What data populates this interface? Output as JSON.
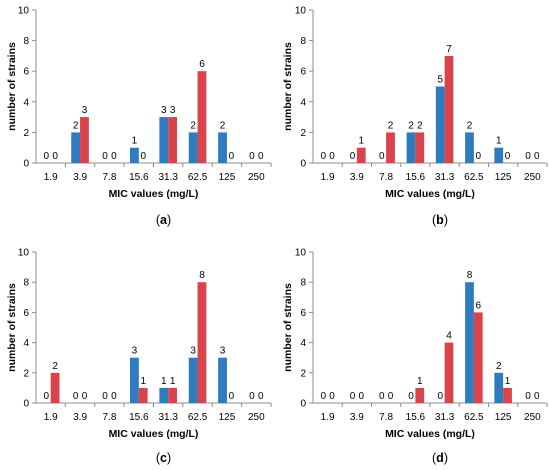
{
  "colors": {
    "series_a": "#2e7bbf",
    "series_b": "#d9434b",
    "axis": "#8c8c8c",
    "grid": "#d9d9d9"
  },
  "chart_data": [
    {
      "type": "bar",
      "panel_label": "(a)",
      "categories": [
        "1.9",
        "3.9",
        "7.8",
        "15.6",
        "31.3",
        "62.5",
        "125",
        "250"
      ],
      "xlabel": "MIC values (mg/L)",
      "ylabel": "number of strains",
      "ylim": [
        0,
        10
      ],
      "yticks": [
        0,
        2,
        4,
        6,
        8,
        10
      ],
      "grid": false,
      "series": [
        {
          "values": [
            0,
            2,
            0,
            1,
            3,
            2,
            2,
            0
          ]
        },
        {
          "values": [
            0,
            3,
            0,
            0,
            3,
            6,
            0,
            0
          ]
        }
      ]
    },
    {
      "type": "bar",
      "panel_label": "(b)",
      "categories": [
        "1.9",
        "3.9",
        "7.8",
        "15.6",
        "31.3",
        "62.5",
        "125",
        "250"
      ],
      "xlabel": "MIC values (mg/L)",
      "ylabel": "number of strains",
      "ylim": [
        0,
        10
      ],
      "yticks": [
        0,
        2,
        4,
        6,
        8,
        10
      ],
      "grid": false,
      "series": [
        {
          "values": [
            0,
            0,
            0,
            2,
            5,
            2,
            1,
            0
          ]
        },
        {
          "values": [
            0,
            1,
            2,
            2,
            7,
            0,
            0,
            0
          ]
        }
      ]
    },
    {
      "type": "bar",
      "panel_label": "(c)",
      "categories": [
        "1.9",
        "3.9",
        "7.8",
        "15.6",
        "31.3",
        "62.5",
        "125",
        "250"
      ],
      "xlabel": "MIC values (mg/L)",
      "ylabel": "number of strains",
      "ylim": [
        0,
        10
      ],
      "yticks": [
        0,
        2,
        4,
        6,
        8,
        10
      ],
      "grid": false,
      "series": [
        {
          "values": [
            0,
            0,
            0,
            3,
            1,
            3,
            3,
            0
          ]
        },
        {
          "values": [
            2,
            0,
            0,
            1,
            1,
            8,
            0,
            0
          ]
        }
      ]
    },
    {
      "type": "bar",
      "panel_label": "(d)",
      "categories": [
        "1.9",
        "3.9",
        "7.8",
        "15.6",
        "31.3",
        "62.5",
        "125",
        "250"
      ],
      "xlabel": "MIC values (mg/L)",
      "ylabel": "number of strains",
      "ylim": [
        0,
        10
      ],
      "yticks": [
        0,
        2,
        4,
        6,
        8,
        10
      ],
      "grid": false,
      "series": [
        {
          "values": [
            0,
            0,
            0,
            0,
            0,
            8,
            2,
            0
          ]
        },
        {
          "values": [
            0,
            0,
            0,
            1,
            4,
            6,
            1,
            0
          ]
        }
      ]
    }
  ]
}
